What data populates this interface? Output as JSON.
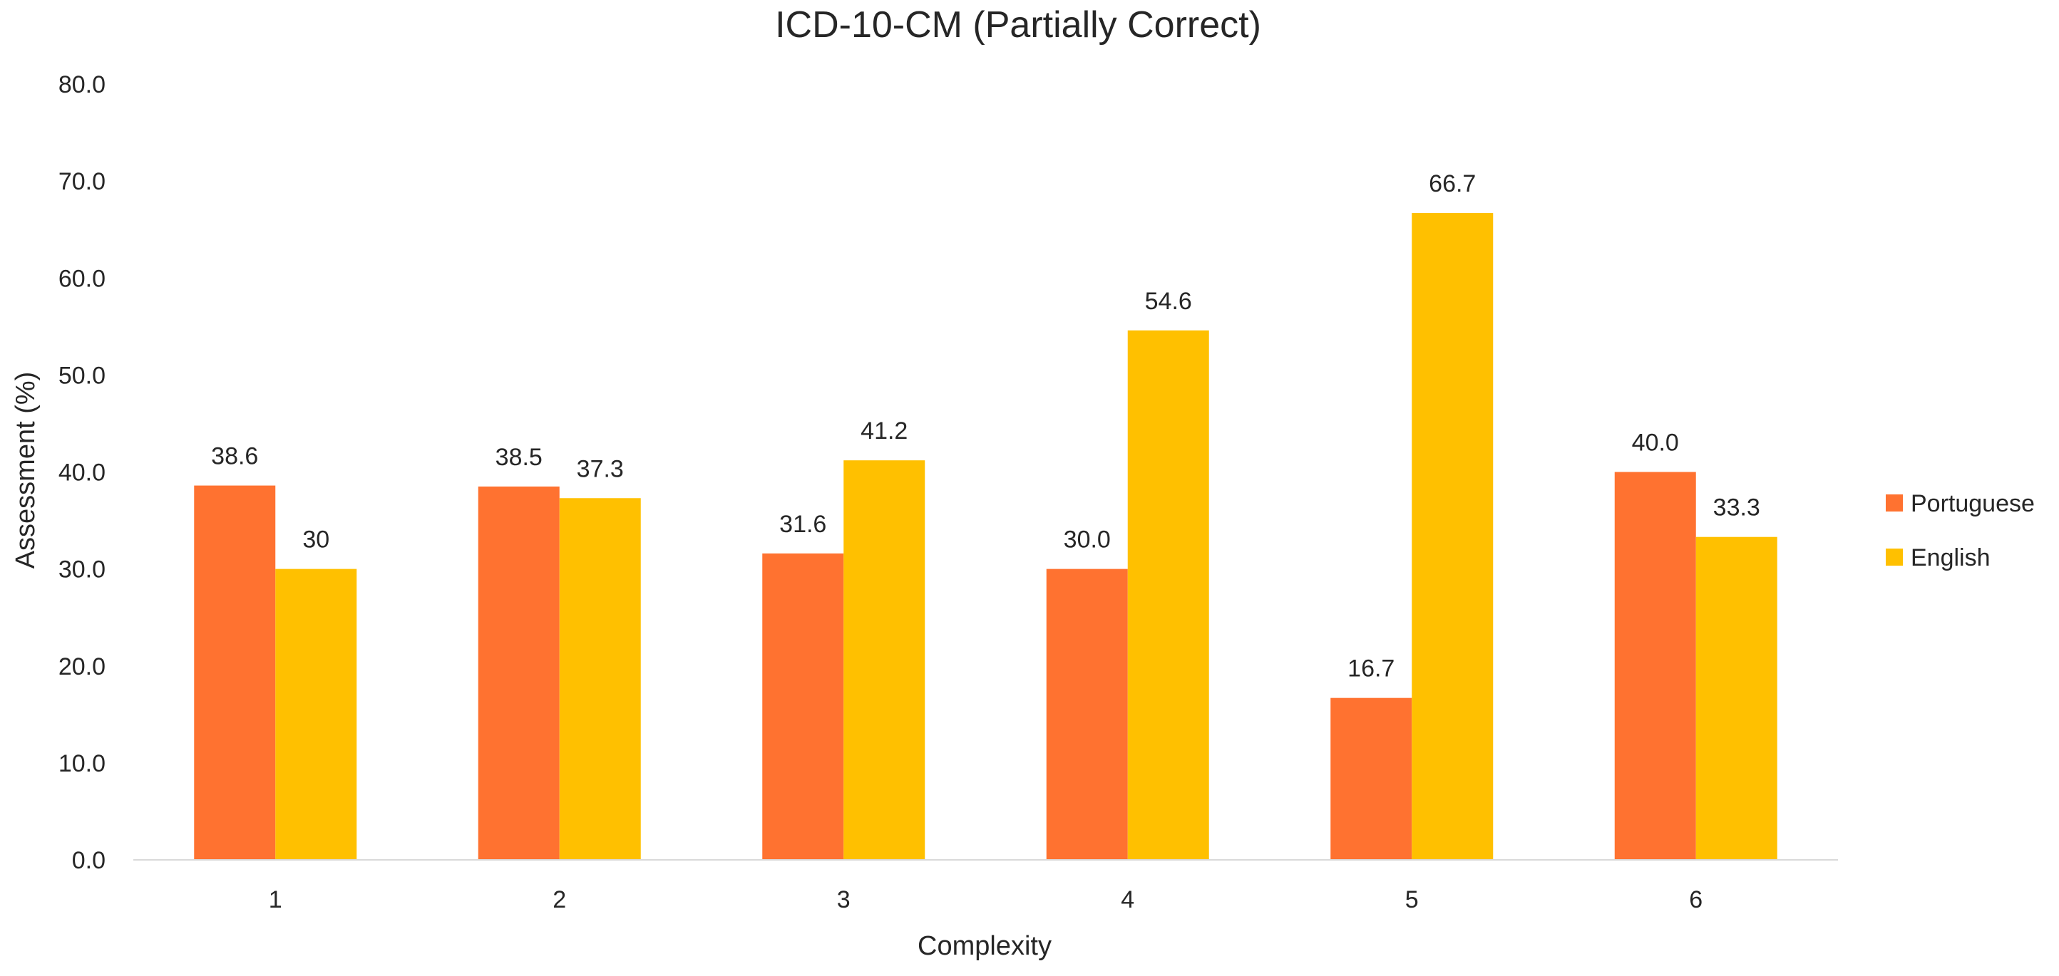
{
  "chart_data": {
    "type": "bar",
    "title": "ICD-10-CM (Partially Correct)",
    "xlabel": "Complexity",
    "ylabel": "Assessment (%)",
    "ylim": [
      0,
      80
    ],
    "yticks": [
      "0.0",
      "10.0",
      "20.0",
      "30.0",
      "40.0",
      "50.0",
      "60.0",
      "70.0",
      "80.0"
    ],
    "categories": [
      "1",
      "2",
      "3",
      "4",
      "5",
      "6"
    ],
    "grid": false,
    "legend_position": "right",
    "series": [
      {
        "name": "Portuguese",
        "color": "#FF7230",
        "values": [
          38.6,
          38.5,
          31.6,
          30.0,
          16.7,
          40.0
        ],
        "labels": [
          "38.6",
          "38.5",
          "31.6",
          "30.0",
          "16.7",
          "40.0"
        ]
      },
      {
        "name": "English",
        "color": "#FFC000",
        "values": [
          30,
          37.3,
          41.2,
          54.6,
          66.7,
          33.3
        ],
        "labels": [
          "30",
          "37.3",
          "41.2",
          "54.6",
          "66.7",
          "33.3"
        ]
      }
    ]
  }
}
